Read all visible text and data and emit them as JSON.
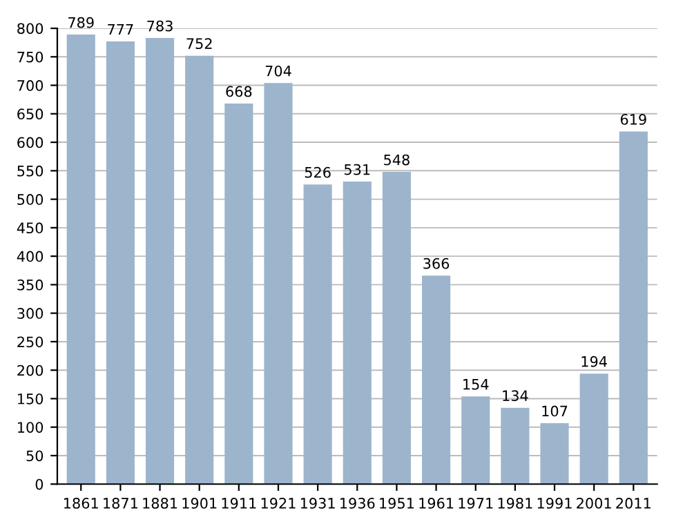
{
  "chart_data": {
    "type": "bar",
    "categories": [
      "1861",
      "1871",
      "1881",
      "1901",
      "1911",
      "1921",
      "1931",
      "1936",
      "1951",
      "1961",
      "1971",
      "1981",
      "1991",
      "2001",
      "2011"
    ],
    "values": [
      789,
      777,
      783,
      752,
      668,
      704,
      526,
      531,
      548,
      366,
      154,
      134,
      107,
      194,
      619
    ],
    "color": "#9db4cd",
    "data_labels": true,
    "grid": "y",
    "ylim": [
      0,
      800
    ],
    "yticks": [
      0,
      50,
      100,
      150,
      200,
      250,
      300,
      350,
      400,
      450,
      500,
      550,
      600,
      650,
      700,
      750,
      800
    ]
  }
}
